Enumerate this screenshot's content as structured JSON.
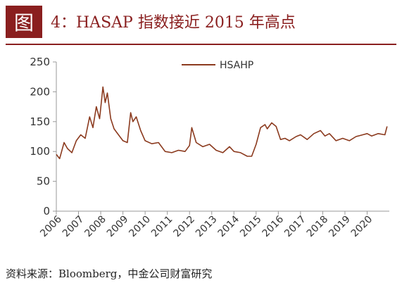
{
  "figure": {
    "badge": "图",
    "title": "4：HASAP 指数接近 2015 年高点",
    "source": "资料来源：Bloomberg，中金公司财富研究"
  },
  "colors": {
    "accent": "#8a1f1f",
    "series": "#8b3a1e",
    "axis": "#999999"
  },
  "chart_data": {
    "type": "line",
    "title": "",
    "xlabel": "",
    "ylabel": "",
    "ylim": [
      0,
      250
    ],
    "xlim": [
      2006,
      2021
    ],
    "yticks": [
      0,
      50,
      100,
      150,
      200,
      250
    ],
    "xticks": [
      "2006",
      "2007",
      "2008",
      "2009",
      "2010",
      "2011",
      "2012",
      "2013",
      "2014",
      "2015",
      "2016",
      "2017",
      "2018",
      "2019",
      "2020"
    ],
    "grid": false,
    "legend_position": "top-center",
    "series": [
      {
        "name": "HSAHP",
        "x": [
          2006.0,
          2006.15,
          2006.35,
          2006.5,
          2006.7,
          2006.9,
          2007.1,
          2007.3,
          2007.5,
          2007.65,
          2007.8,
          2007.95,
          2008.1,
          2008.2,
          2008.3,
          2008.45,
          2008.6,
          2008.8,
          2009.0,
          2009.2,
          2009.35,
          2009.45,
          2009.6,
          2009.8,
          2010.0,
          2010.3,
          2010.6,
          2010.9,
          2011.2,
          2011.5,
          2011.8,
          2012.0,
          2012.1,
          2012.3,
          2012.6,
          2012.9,
          2013.2,
          2013.5,
          2013.8,
          2014.0,
          2014.3,
          2014.6,
          2014.8,
          2015.0,
          2015.2,
          2015.4,
          2015.5,
          2015.7,
          2015.9,
          2016.1,
          2016.3,
          2016.5,
          2016.8,
          2017.0,
          2017.3,
          2017.6,
          2017.9,
          2018.1,
          2018.3,
          2018.6,
          2018.9,
          2019.2,
          2019.5,
          2019.8,
          2020.0,
          2020.2,
          2020.5,
          2020.8,
          2020.9
        ],
        "values": [
          95,
          88,
          115,
          105,
          98,
          118,
          128,
          122,
          158,
          140,
          175,
          155,
          208,
          182,
          198,
          155,
          138,
          128,
          118,
          115,
          165,
          150,
          158,
          135,
          118,
          113,
          115,
          100,
          98,
          102,
          100,
          110,
          140,
          115,
          108,
          112,
          102,
          98,
          108,
          100,
          98,
          92,
          92,
          112,
          140,
          145,
          138,
          148,
          142,
          120,
          122,
          118,
          125,
          128,
          120,
          130,
          135,
          126,
          130,
          118,
          122,
          118,
          125,
          128,
          130,
          126,
          130,
          128,
          142
        ]
      }
    ]
  }
}
